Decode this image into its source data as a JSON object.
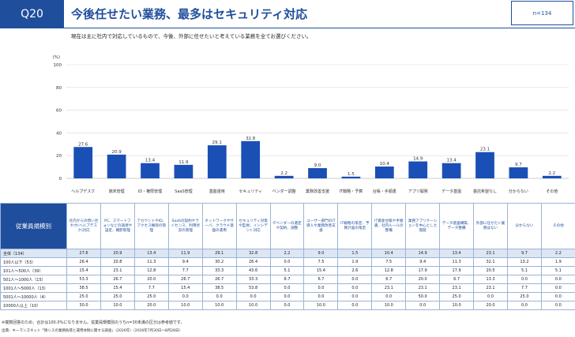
{
  "header": {
    "q_label": "Q20",
    "title": "今後任せたい業務、最多はセキュリティ対応",
    "n_label": "n=134",
    "question": "現在は主に社内で対応しているもので、今後、外部に任せたいと考えている業務を全てお選びください。"
  },
  "colors": {
    "accent": "#1f4e9c",
    "bar": "#1a4fb5",
    "grid": "#d9d9d9",
    "total_row": "#dce6f4"
  },
  "chart_data": {
    "type": "bar",
    "title": "",
    "ylabel": "(%)",
    "ylim": [
      0,
      100
    ],
    "yticks": [
      0,
      20,
      40,
      60,
      80,
      100
    ],
    "grid": true,
    "categories": [
      "ヘルプデスク",
      "端末管理",
      "ID・権限管理",
      "SaaS管理",
      "基盤運用",
      "セキュリティ",
      "ベンダー調整",
      "業務改善支援",
      "IT戦略・予算",
      "台帳・手順書",
      "アプリ開発",
      "データ基盤",
      "委託希望なし",
      "分からない",
      "その他"
    ],
    "values": [
      27.6,
      20.9,
      13.4,
      11.9,
      29.1,
      32.8,
      2.2,
      9.0,
      1.5,
      10.4,
      14.9,
      13.4,
      23.1,
      9.7,
      2.2
    ]
  },
  "table": {
    "side_header": "従業員規模別",
    "columns": [
      "社内からの問い合わせ(ヘルプデスク)対応",
      "PC、スマートフォンなどの調達や設定、棚卸管理",
      "アカウントやID、アクセス権限の管理",
      "SaaSの契約やライセンス、利用状況の管理",
      "ネットワークやサーバ、クラウド基盤の運用",
      "セキュリティ対策や監視、インシデント対応",
      "ITベンダーの選定や契約、調整",
      "ユーザー部門のIT導入や業務改善支援",
      "IT戦略の策定、予算計画の策定",
      "IT資産台帳や手順書、社内ルールの整備",
      "業務アプリケーションを中心とした開発",
      "データ基盤構築、データ整備",
      "外部に任せたい業務はない",
      "分からない",
      "その他"
    ],
    "rows": [
      {
        "label": "全体（134）",
        "values": [
          "27.6",
          "20.9",
          "13.4",
          "11.9",
          "29.1",
          "32.8",
          "2.2",
          "9.0",
          "1.5",
          "10.4",
          "14.9",
          "13.4",
          "23.1",
          "9.7",
          "2.2"
        ]
      },
      {
        "label": "100人以下（53）",
        "values": [
          "26.4",
          "20.8",
          "11.3",
          "9.4",
          "30.2",
          "26.4",
          "0.0",
          "7.5",
          "1.9",
          "7.5",
          "9.4",
          "11.3",
          "32.1",
          "13.2",
          "1.9"
        ]
      },
      {
        "label": "101人～500人（39）",
        "values": [
          "15.4",
          "23.1",
          "12.8",
          "7.7",
          "33.3",
          "43.6",
          "5.1",
          "15.4",
          "2.6",
          "12.8",
          "17.9",
          "17.9",
          "20.5",
          "5.1",
          "5.1"
        ]
      },
      {
        "label": "501人～1000人（15）",
        "values": [
          "53.3",
          "26.7",
          "20.0",
          "26.7",
          "26.7",
          "33.3",
          "6.7",
          "6.7",
          "0.0",
          "6.7",
          "20.0",
          "6.7",
          "13.3",
          "0.0",
          "0.0"
        ]
      },
      {
        "label": "1001人～5000人（13）",
        "values": [
          "38.5",
          "15.4",
          "7.7",
          "15.4",
          "38.5",
          "53.8",
          "0.0",
          "0.0",
          "0.0",
          "23.1",
          "23.1",
          "23.1",
          "23.1",
          "7.7",
          "0.0"
        ]
      },
      {
        "label": "5001人～10000人（4）",
        "values": [
          "25.0",
          "25.0",
          "25.0",
          "0.0",
          "0.0",
          "0.0",
          "0.0",
          "0.0",
          "0.0",
          "0.0",
          "50.0",
          "25.0",
          "0.0",
          "25.0",
          "0.0"
        ]
      },
      {
        "label": "10000人以上（10）",
        "values": [
          "30.0",
          "10.0",
          "20.0",
          "10.0",
          "10.0",
          "10.0",
          "0.0",
          "10.0",
          "0.0",
          "10.0",
          "0.0",
          "10.0",
          "20.0",
          "0.0",
          "0.0"
        ]
      }
    ]
  },
  "footer": {
    "note": "※複数回答のため、合計は100.0%になりません。従業員規模別のうちn=30未満の区分は参考値です。",
    "source": "出典：キーマンズネット「情シスの業務負荷と運用体制に関する調査」（2026年）（2026年7月30日～8月28日）"
  }
}
